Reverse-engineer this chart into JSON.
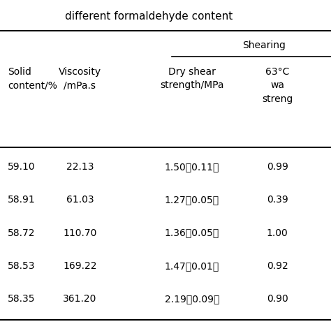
{
  "title_line": "different formaldehyde content",
  "shearing_label": "Shearing",
  "col1_header": "Solid\ncontent/%",
  "col2_header": "Viscosity\n/mPa.s",
  "col3_header": "Dry shear\nstrength/MPa",
  "col4_header": "63°C\nwa\nstreng",
  "rows": [
    [
      "59.10",
      "22.13",
      "1.50（0.11）",
      "0.99"
    ],
    [
      "58.91",
      "61.03",
      "1.27（0.05）",
      "0.39"
    ],
    [
      "58.72",
      "110.70",
      "1.36（0.05）",
      "1.00"
    ],
    [
      "58.53",
      "169.22",
      "1.47（0.01）",
      "0.92"
    ],
    [
      "58.35",
      "361.20",
      "2.19（0.09）",
      "0.90"
    ]
  ],
  "background_color": "#ffffff",
  "text_color": "#000000",
  "fontsize_title": 11,
  "fontsize_header": 10,
  "fontsize_data": 10
}
